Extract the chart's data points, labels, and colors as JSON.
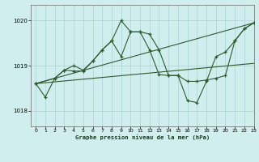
{
  "title": "Graphe pression niveau de la mer (hPa)",
  "bg_color": "#d1eeee",
  "line_color": "#2d5a2d",
  "grid_color": "#a8d4d4",
  "xlim": [
    -0.5,
    23
  ],
  "ylim": [
    1017.65,
    1020.35
  ],
  "yticks": [
    1018,
    1019,
    1020
  ],
  "xticks": [
    0,
    1,
    2,
    3,
    4,
    5,
    6,
    7,
    8,
    9,
    10,
    11,
    12,
    13,
    14,
    15,
    16,
    17,
    18,
    19,
    20,
    21,
    22,
    23
  ],
  "series_jagged1_x": [
    0,
    1,
    2,
    3,
    4,
    5,
    6,
    7,
    8,
    9,
    10,
    11,
    12,
    13,
    14,
    15,
    16,
    17,
    18,
    19,
    20,
    21,
    22,
    23
  ],
  "series_jagged1_y": [
    1018.6,
    1018.3,
    1018.72,
    1018.9,
    1019.0,
    1018.9,
    1019.1,
    1019.35,
    1019.55,
    1020.0,
    1019.75,
    1019.75,
    1019.35,
    1018.8,
    1018.78,
    1018.78,
    1018.22,
    1018.18,
    1018.65,
    1019.2,
    1019.3,
    1019.55,
    1019.82,
    1019.95
  ],
  "series_jagged2_x": [
    0,
    2,
    3,
    4,
    5,
    6,
    7,
    8,
    9,
    10,
    11,
    12,
    13,
    14,
    15,
    16,
    17,
    18,
    19,
    20,
    21,
    22,
    23
  ],
  "series_jagged2_y": [
    1018.6,
    1018.72,
    1018.9,
    1018.88,
    1018.88,
    1019.1,
    1019.35,
    1019.55,
    1019.2,
    1019.75,
    1019.75,
    1019.7,
    1019.35,
    1018.78,
    1018.78,
    1018.65,
    1018.65,
    1018.68,
    1018.72,
    1018.78,
    1019.55,
    1019.82,
    1019.95
  ],
  "series_line1_x": [
    0,
    23
  ],
  "series_line1_y": [
    1018.6,
    1019.95
  ],
  "series_line2_x": [
    0,
    23
  ],
  "series_line2_y": [
    1018.6,
    1019.05
  ]
}
